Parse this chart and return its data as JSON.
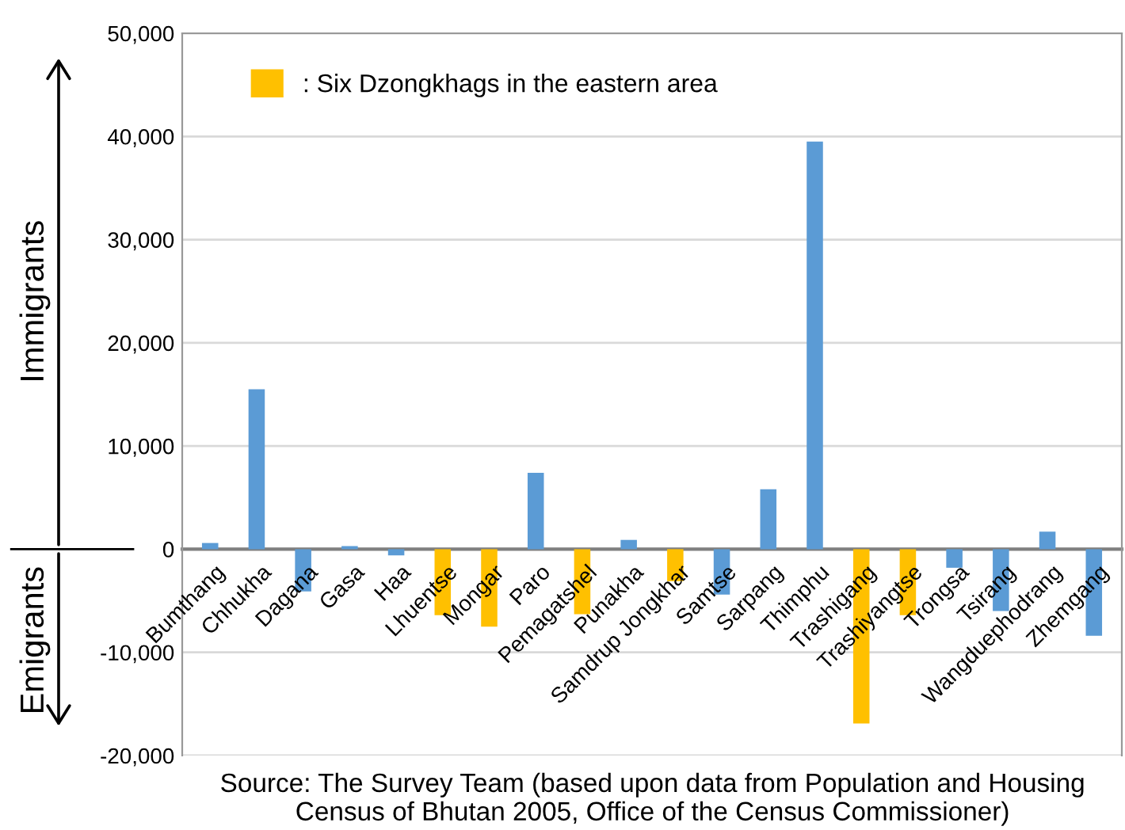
{
  "chart_data": {
    "type": "bar",
    "stacked": true,
    "categories": [
      "Bumthang",
      "Chhukha",
      "Dagana",
      "Gasa",
      "Haa",
      "Lhuentse",
      "Mongar",
      "Paro",
      "Pemagatshel",
      "Punakha",
      "Samdrup Jongkhar",
      "Samtse",
      "Sarpang",
      "Thimphu",
      "Trashigang",
      "Trashiyangtse",
      "Trongsa",
      "Tsirang",
      "Wangduephodrang",
      "Zhemgang"
    ],
    "series": [
      {
        "color": "#5b9bd5",
        "values": [
          600,
          15500,
          -4100,
          300,
          -600,
          null,
          null,
          7400,
          null,
          900,
          null,
          -4400,
          5800,
          39500,
          null,
          null,
          -1800,
          -6000,
          1700,
          -8400
        ]
      },
      {
        "name": ": Six Dzongkhags in the eastern area",
        "color": "#ffc000",
        "values": [
          null,
          null,
          null,
          null,
          null,
          -6400,
          -7500,
          null,
          -6300,
          null,
          -3100,
          null,
          null,
          null,
          -16900,
          -6400,
          null,
          null,
          null,
          null
        ]
      }
    ],
    "ylim": [
      -20000,
      50000
    ],
    "yticks": [
      {
        "value": -20000,
        "label": "-20,000"
      },
      {
        "value": -10000,
        "label": "-10,000"
      },
      {
        "value": 0,
        "label": "0"
      },
      {
        "value": 10000,
        "label": "10,000"
      },
      {
        "value": 20000,
        "label": "20,000"
      },
      {
        "value": 30000,
        "label": "30,000"
      },
      {
        "value": 40000,
        "label": "40,000"
      },
      {
        "value": 50000,
        "label": "50,000"
      }
    ],
    "grid": "y",
    "legend": "top left",
    "annotations": [
      "Immigrants",
      "Emigrants",
      "Source: The Survey Team (based upon data from Population and Housing Census of Bhutan 2005, Office of the Census Commissioner)"
    ]
  }
}
